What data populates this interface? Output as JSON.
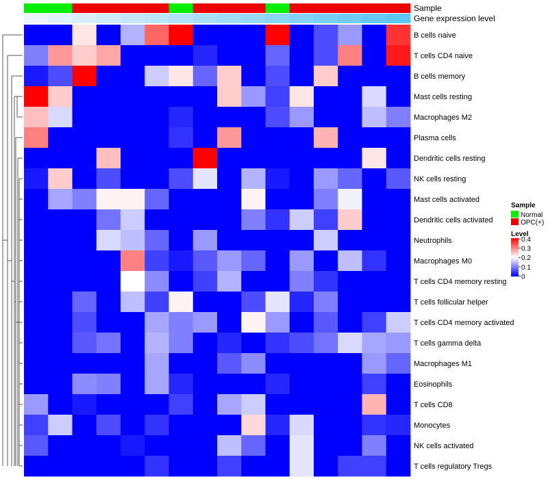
{
  "chart_data": {
    "type": "heatmap",
    "title": "",
    "annotation_tracks": [
      {
        "name": "Sample",
        "values": [
          "Normal",
          "Normal",
          "OPC(+)",
          "OPC(+)",
          "OPC(+)",
          "OPC(+)",
          "Normal",
          "OPC(+)",
          "OPC(+)",
          "OPC(+)",
          "Normal",
          "OPC(+)",
          "OPC(+)",
          "OPC(+)",
          "OPC(+)",
          "OPC(+)"
        ]
      },
      {
        "name": "Gene expression level",
        "values": [
          0.0,
          0.07,
          0.13,
          0.2,
          0.27,
          0.33,
          0.4,
          0.47,
          0.53,
          0.6,
          0.67,
          0.73,
          0.8,
          0.87,
          0.93,
          1.0
        ]
      }
    ],
    "rows": [
      "B cells naive",
      "T cells CD4 naive",
      "B cells memory",
      "Mast cells resting",
      "Macrophages M2",
      "Plasma cells",
      "Dendritic cells resting",
      "NK cells resting",
      "Mast cells activated",
      "Dendritic cells activated",
      "Neutrophils",
      "Macrophages M0",
      "T cells CD4 memory resting",
      "T cells follicular helper",
      "T cells CD4 memory activated",
      "T cells gamma delta",
      "Macrophages M1",
      "Eosinophils",
      "T cells CD8",
      "Monocytes",
      "NK cells activated",
      "T cells regulatory  Tregs"
    ],
    "values": [
      [
        0.0,
        0.0,
        0.22,
        0.0,
        0.14,
        0.32,
        0.4,
        0.0,
        0.0,
        0.0,
        0.4,
        0.0,
        0.06,
        0.12,
        0.0,
        0.36
      ],
      [
        0.1,
        0.28,
        0.24,
        0.27,
        0.0,
        0.0,
        0.0,
        0.03,
        0.0,
        0.0,
        0.08,
        0.0,
        0.06,
        0.3,
        0.0,
        0.38
      ],
      [
        0.02,
        0.06,
        0.4,
        0.0,
        0.0,
        0.16,
        0.22,
        0.08,
        0.24,
        0.0,
        0.06,
        0.0,
        0.24,
        0.0,
        0.0,
        0.0
      ],
      [
        0.4,
        0.24,
        0.0,
        0.0,
        0.0,
        0.0,
        0.0,
        0.0,
        0.24,
        0.12,
        0.05,
        0.22,
        0.0,
        0.0,
        0.17,
        0.0
      ],
      [
        0.25,
        0.17,
        0.0,
        0.0,
        0.0,
        0.0,
        0.03,
        0.0,
        0.0,
        0.0,
        0.06,
        0.12,
        0.0,
        0.0,
        0.15,
        0.1
      ],
      [
        0.3,
        0.0,
        0.0,
        0.0,
        0.0,
        0.0,
        0.04,
        0.0,
        0.28,
        0.0,
        0.0,
        0.0,
        0.26,
        0.0,
        0.0,
        0.0
      ],
      [
        0.0,
        0.0,
        0.0,
        0.25,
        0.0,
        0.0,
        0.0,
        0.4,
        0.0,
        0.0,
        0.0,
        0.0,
        0.0,
        0.0,
        0.22,
        0.0
      ],
      [
        0.02,
        0.24,
        0.0,
        0.06,
        0.0,
        0.0,
        0.06,
        0.18,
        0.0,
        0.14,
        0.02,
        0.0,
        0.12,
        0.08,
        0.0,
        0.07
      ],
      [
        0.0,
        0.13,
        0.1,
        0.21,
        0.21,
        0.08,
        0.0,
        0.0,
        0.0,
        0.21,
        0.0,
        0.0,
        0.1,
        0.19,
        0.0,
        0.0
      ],
      [
        0.0,
        0.0,
        0.0,
        0.09,
        0.16,
        0.0,
        0.0,
        0.0,
        0.0,
        0.1,
        0.04,
        0.16,
        0.05,
        0.24,
        0.0,
        0.0
      ],
      [
        0.0,
        0.0,
        0.0,
        0.17,
        0.15,
        0.08,
        0.0,
        0.12,
        0.0,
        0.0,
        0.0,
        0.0,
        0.16,
        0.0,
        0.0,
        0.0
      ],
      [
        0.0,
        0.0,
        0.0,
        0.0,
        0.3,
        0.05,
        0.02,
        0.07,
        0.12,
        0.08,
        0.0,
        0.12,
        0.0,
        0.15,
        0.04,
        0.0
      ],
      [
        0.0,
        0.0,
        0.0,
        0.0,
        0.2,
        0.11,
        0.0,
        0.05,
        0.14,
        0.0,
        0.0,
        0.1,
        0.04,
        0.0,
        0.0,
        0.0
      ],
      [
        0.0,
        0.0,
        0.08,
        0.0,
        0.15,
        0.05,
        0.21,
        0.0,
        0.0,
        0.06,
        0.18,
        0.03,
        0.1,
        0.0,
        0.0,
        0.0
      ],
      [
        0.0,
        0.0,
        0.06,
        0.0,
        0.0,
        0.13,
        0.1,
        0.12,
        0.0,
        0.21,
        0.12,
        0.0,
        0.07,
        0.0,
        0.05,
        0.16
      ],
      [
        0.0,
        0.0,
        0.07,
        0.09,
        0.0,
        0.14,
        0.1,
        0.0,
        0.03,
        0.0,
        0.04,
        0.06,
        0.09,
        0.17,
        0.13,
        0.12
      ],
      [
        0.0,
        0.0,
        0.0,
        0.0,
        0.0,
        0.13,
        0.0,
        0.0,
        0.07,
        0.11,
        0.0,
        0.0,
        0.0,
        0.0,
        0.12,
        0.08
      ],
      [
        0.0,
        0.0,
        0.11,
        0.1,
        0.0,
        0.13,
        0.03,
        0.0,
        0.0,
        0.0,
        0.03,
        0.0,
        0.0,
        0.0,
        0.05,
        0.0
      ],
      [
        0.12,
        0.0,
        0.02,
        0.0,
        0.0,
        0.0,
        0.05,
        0.0,
        0.13,
        0.16,
        0.0,
        0.0,
        0.0,
        0.0,
        0.26,
        0.0
      ],
      [
        0.05,
        0.16,
        0.0,
        0.06,
        0.0,
        0.04,
        0.0,
        0.0,
        0.0,
        0.23,
        0.03,
        0.17,
        0.0,
        0.0,
        0.04,
        0.03
      ],
      [
        0.07,
        0.0,
        0.0,
        0.0,
        0.02,
        0.0,
        0.0,
        0.0,
        0.15,
        0.08,
        0.0,
        0.18,
        0.0,
        0.0,
        0.1,
        0.0
      ],
      [
        0.0,
        0.0,
        0.0,
        0.0,
        0.0,
        0.04,
        0.0,
        0.0,
        0.05,
        0.0,
        0.0,
        0.18,
        0.0,
        0.05,
        0.05,
        0.0
      ]
    ],
    "color_scale": {
      "min": 0,
      "max": 0.4,
      "low_color": "#0000ff",
      "mid_color": "#ffffff",
      "high_color": "#ff0000"
    },
    "legend": {
      "placement": "right",
      "sample_title": "Sample",
      "sample_entries": [
        {
          "label": "Normal",
          "color": "#00ee00"
        },
        {
          "label": "OPC(+)",
          "color": "#ee0000"
        }
      ],
      "level_title": "Level",
      "level_ticks": [
        "0.4",
        "0.3",
        "0.2",
        "0.1",
        "0"
      ]
    },
    "expression_track_colors": {
      "low": "#eaf5fb",
      "high": "#5cc6f5"
    },
    "row_dendrogram": true,
    "grid": false
  }
}
